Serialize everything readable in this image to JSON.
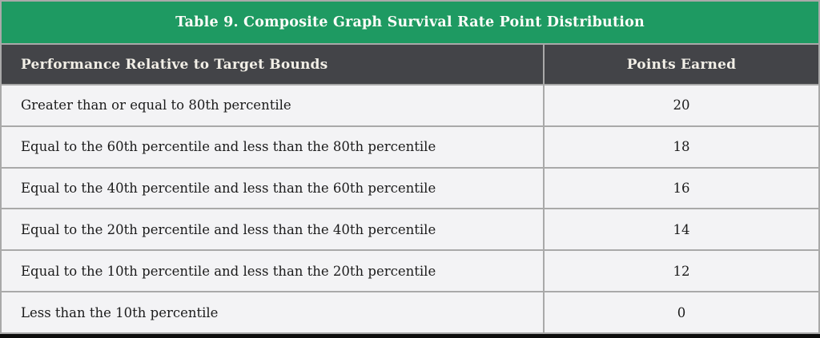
{
  "table": {
    "title": "Table 9. Composite Graph Survival Rate Point Distribution",
    "columns": [
      "Performance Relative to Target Bounds",
      "Points Earned"
    ],
    "rows": [
      {
        "performance": "Greater than or equal to 80th percentile",
        "points": "20"
      },
      {
        "performance": "Equal to the 60th percentile and less than the 80th percentile",
        "points": "18"
      },
      {
        "performance": "Equal to the 40th percentile and less than the 60th percentile",
        "points": "16"
      },
      {
        "performance": "Equal to the 20th percentile and less than the 40th percentile",
        "points": "14"
      },
      {
        "performance": "Equal to the 10th percentile and less than the 20th percentile",
        "points": "12"
      },
      {
        "performance": "Less than the 10th percentile",
        "points": "0"
      }
    ]
  },
  "colors": {
    "title_bg": "#1e9a62",
    "header_bg": "#434448",
    "row_bg": "#f3f3f5",
    "border": "#a9a9a9",
    "bottom_bar": "#0d0d0d",
    "body_text": "#1b1b1b",
    "header_text": "#f2efe7"
  }
}
